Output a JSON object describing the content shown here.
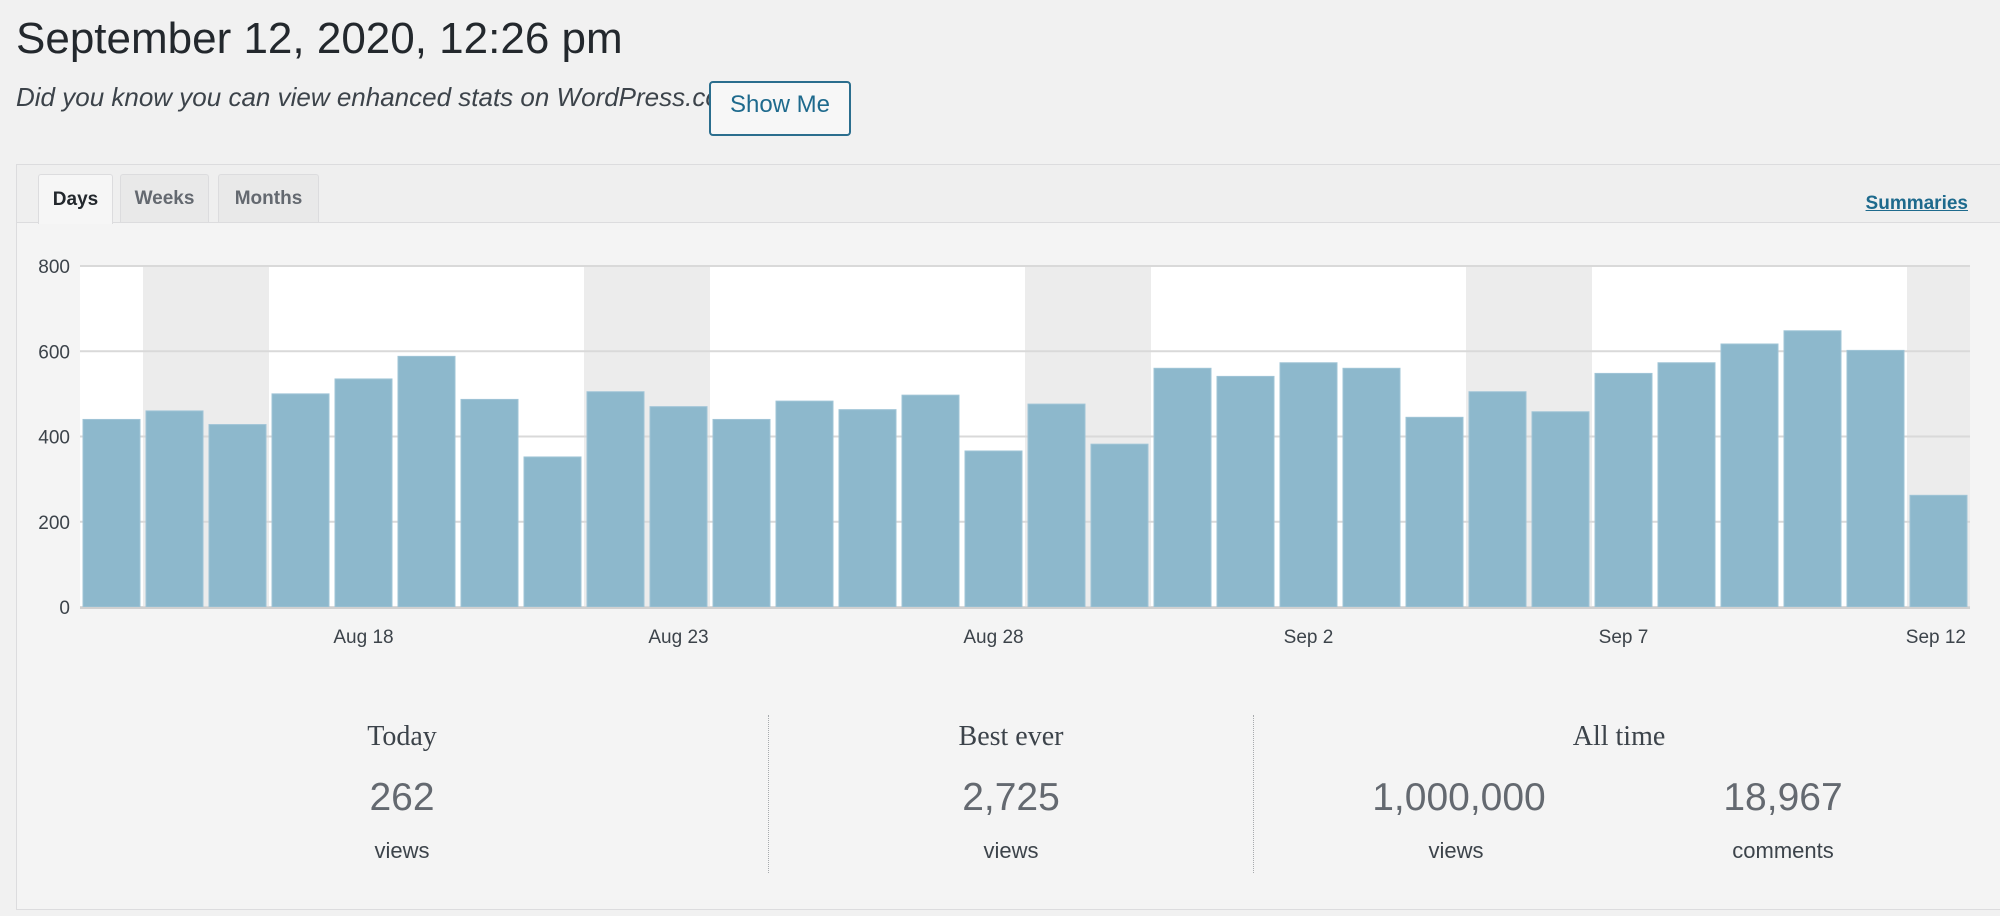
{
  "header": {
    "datetime": "September 12, 2020, 12:26 pm",
    "promo_text": "Did you know you can view enhanced stats on WordPress.com?",
    "show_me_label": "Show Me"
  },
  "tabs": [
    {
      "label": "Days",
      "active": true
    },
    {
      "label": "Weeks",
      "active": false
    },
    {
      "label": "Months",
      "active": false
    }
  ],
  "summaries_link": "Summaries",
  "colors": {
    "bar": "#8db8cc",
    "weekend_band": "#ececec",
    "accent": "#1e6a8d"
  },
  "chart_data": {
    "type": "bar",
    "ylim": [
      0,
      800
    ],
    "yticks": [
      0,
      200,
      400,
      600,
      800
    ],
    "grid": true,
    "categories": [
      "Aug 14",
      "Aug 15",
      "Aug 16",
      "Aug 17",
      "Aug 18",
      "Aug 19",
      "Aug 20",
      "Aug 21",
      "Aug 22",
      "Aug 23",
      "Aug 24",
      "Aug 25",
      "Aug 26",
      "Aug 27",
      "Aug 28",
      "Aug 29",
      "Aug 30",
      "Aug 31",
      "Sep 1",
      "Sep 2",
      "Sep 3",
      "Sep 4",
      "Sep 5",
      "Sep 6",
      "Sep 7",
      "Sep 8",
      "Sep 9",
      "Sep 10",
      "Sep 11",
      "Sep 12"
    ],
    "values": [
      440,
      460,
      428,
      500,
      535,
      588,
      487,
      352,
      505,
      470,
      440,
      483,
      463,
      497,
      366,
      476,
      382,
      560,
      541,
      573,
      560,
      445,
      505,
      458,
      548,
      573,
      617,
      648,
      602,
      262
    ],
    "x_tick_labels": [
      {
        "label": "Aug 18",
        "category": "Aug 18"
      },
      {
        "label": "Aug 23",
        "category": "Aug 23"
      },
      {
        "label": "Aug 28",
        "category": "Aug 28"
      },
      {
        "label": "Sep 2",
        "category": "Sep 2"
      },
      {
        "label": "Sep 7",
        "category": "Sep 7"
      },
      {
        "label": "Sep 12",
        "category": "Sep 12"
      }
    ],
    "weekend_categories": [
      "Aug 15",
      "Aug 16",
      "Aug 22",
      "Aug 23",
      "Aug 29",
      "Aug 30",
      "Sep 5",
      "Sep 6",
      "Sep 12"
    ]
  },
  "summary": {
    "today": {
      "label": "Today",
      "value": "262",
      "unit": "views"
    },
    "best_ever": {
      "label": "Best ever",
      "value": "2,725",
      "unit": "views"
    },
    "all_time": {
      "label": "All time",
      "views_value": "1,000,000",
      "views_unit": "views",
      "comments_value": "18,967",
      "comments_unit": "comments"
    }
  }
}
